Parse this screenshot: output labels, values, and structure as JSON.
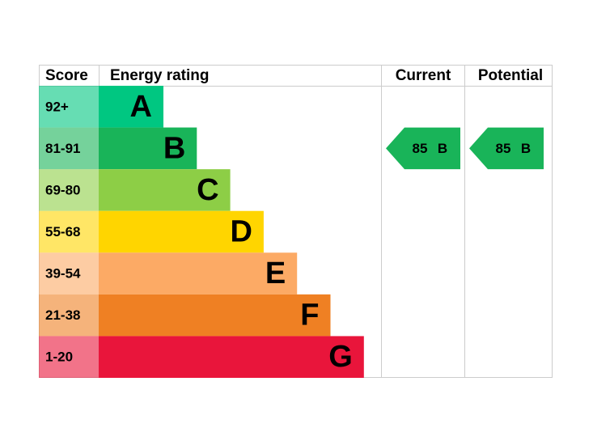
{
  "header": {
    "score": "Score",
    "rating": "Energy rating",
    "current": "Current",
    "potential": "Potential"
  },
  "bands": [
    {
      "score": "92+",
      "letter": "A",
      "color": "#00c781"
    },
    {
      "score": "81-91",
      "letter": "B",
      "color": "#19b459"
    },
    {
      "score": "69-80",
      "letter": "C",
      "color": "#8dce46"
    },
    {
      "score": "55-68",
      "letter": "D",
      "color": "#ffd500"
    },
    {
      "score": "39-54",
      "letter": "E",
      "color": "#fcaa65"
    },
    {
      "score": "21-38",
      "letter": "F",
      "color": "#ef8023"
    },
    {
      "score": "1-20",
      "letter": "G",
      "color": "#e9153b"
    }
  ],
  "current": {
    "score": 85,
    "band": "B"
  },
  "potential": {
    "score": 85,
    "band": "B"
  }
}
